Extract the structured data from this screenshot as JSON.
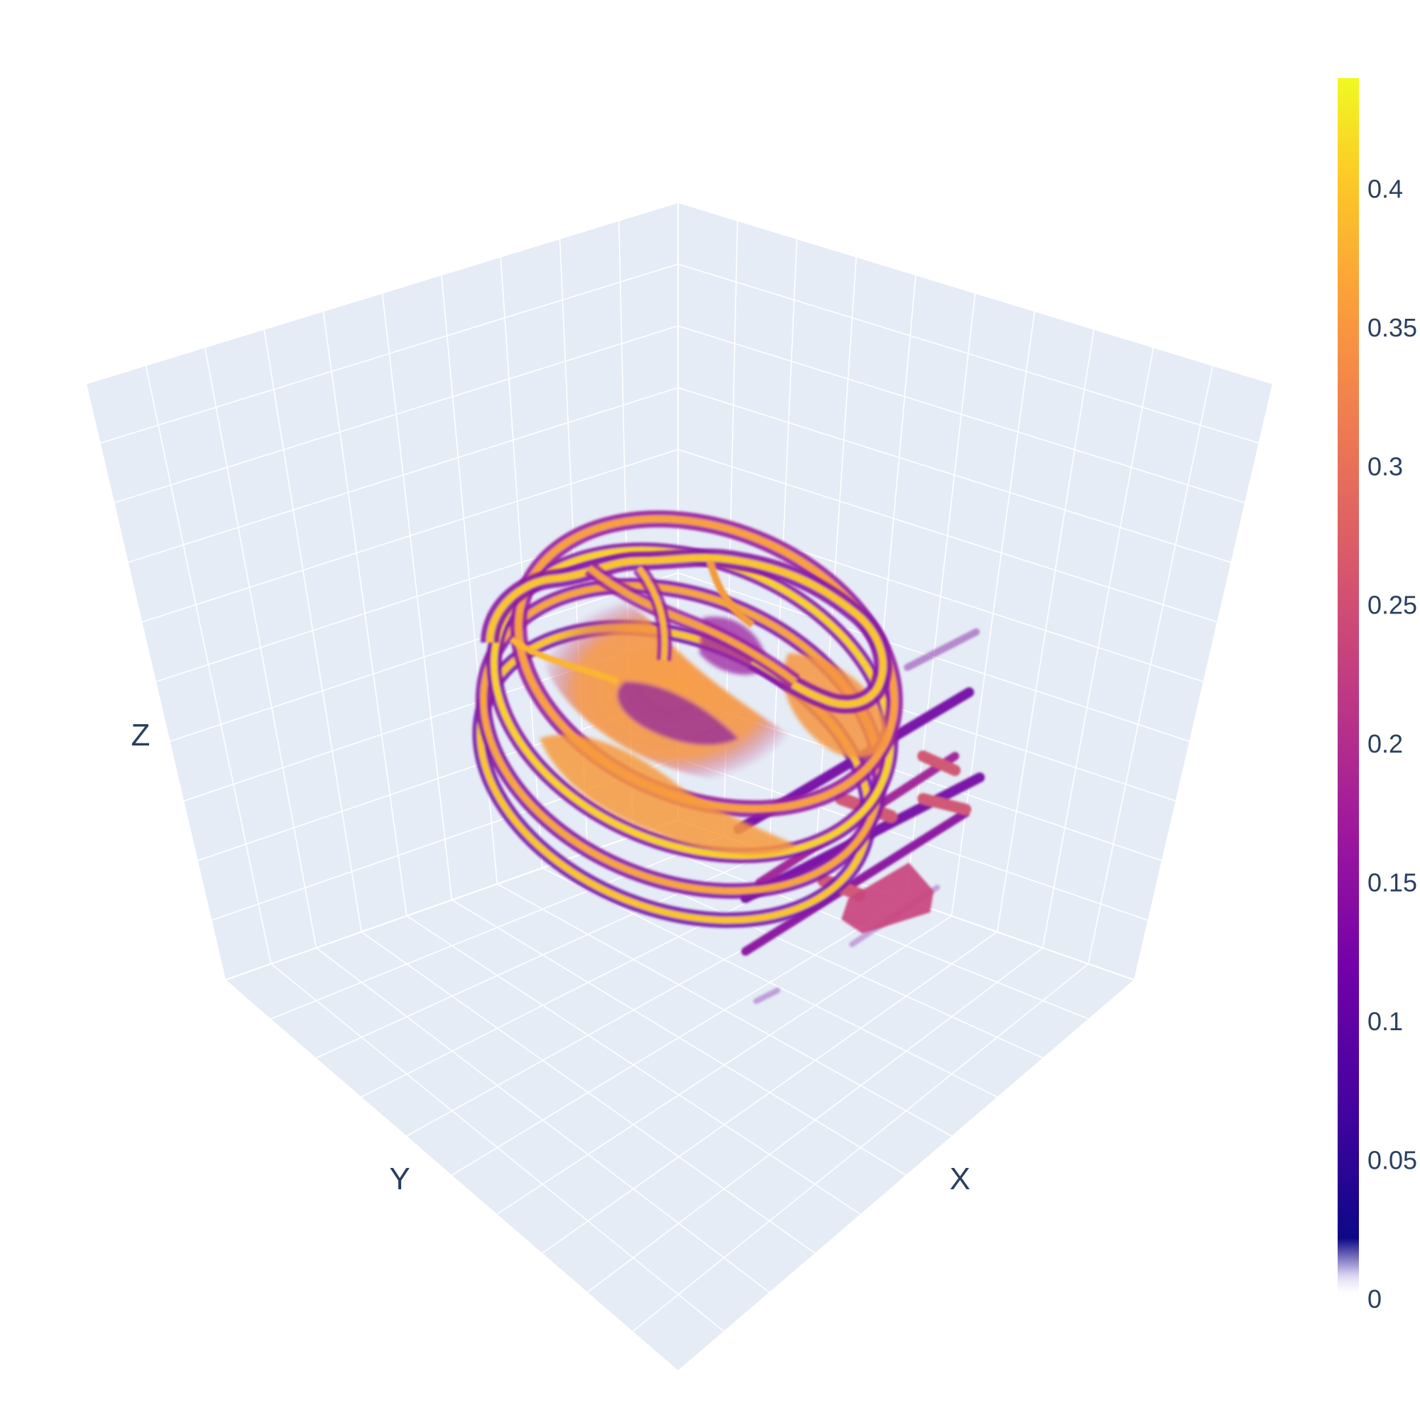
{
  "chart_data": {
    "type": "volume",
    "title": "",
    "axes": {
      "x": {
        "title": "X"
      },
      "y": {
        "title": "Y"
      },
      "z": {
        "title": "Z"
      }
    },
    "background": {
      "pane_color": "#e5ecf6",
      "grid_color": "#ffffff",
      "grid": true
    },
    "colorscale": {
      "name": "Plasma",
      "stops": [
        "#0d0887",
        "#46039f",
        "#7201a8",
        "#9c179e",
        "#bd3786",
        "#d8576b",
        "#ed7953",
        "#fb9f3a",
        "#fdca26",
        "#f0f921"
      ]
    },
    "colorbar": {
      "range": [
        0,
        0.44
      ],
      "ticks": [
        0,
        0.05,
        0.1,
        0.15,
        0.2,
        0.25,
        0.3,
        0.35,
        0.4
      ],
      "tick_labels": [
        "0",
        "0.05",
        "0.1",
        "0.15",
        "0.2",
        "0.25",
        "0.3",
        "0.35",
        "0.4"
      ]
    }
  }
}
